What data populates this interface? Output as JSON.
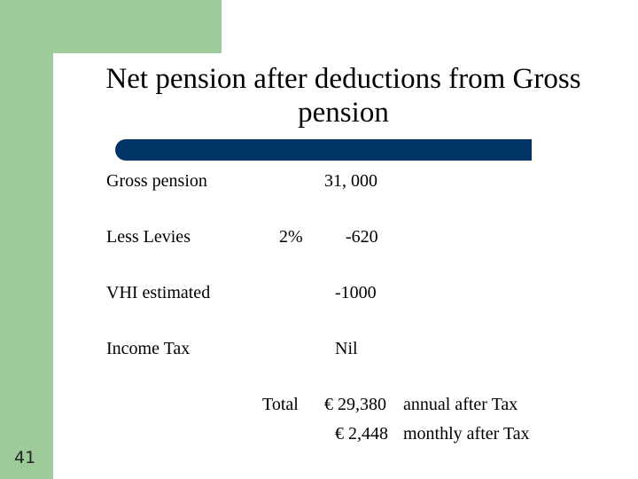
{
  "title": "Net pension after deductions from Gross pension",
  "rows": [
    {
      "label": "Gross pension",
      "amount": "31, 000"
    },
    {
      "label": "Less Levies",
      "rate": "2%",
      "amount": "-620"
    },
    {
      "label": "VHI estimated",
      "amount": "-1000"
    },
    {
      "label": "Income Tax",
      "amount": "Nil"
    }
  ],
  "total": {
    "label": "Total",
    "lines": [
      {
        "amount": "€ 29,380",
        "note": "annual after Tax"
      },
      {
        "amount": "€ 2,448",
        "note": "monthly after Tax"
      }
    ]
  },
  "page_number": "41"
}
